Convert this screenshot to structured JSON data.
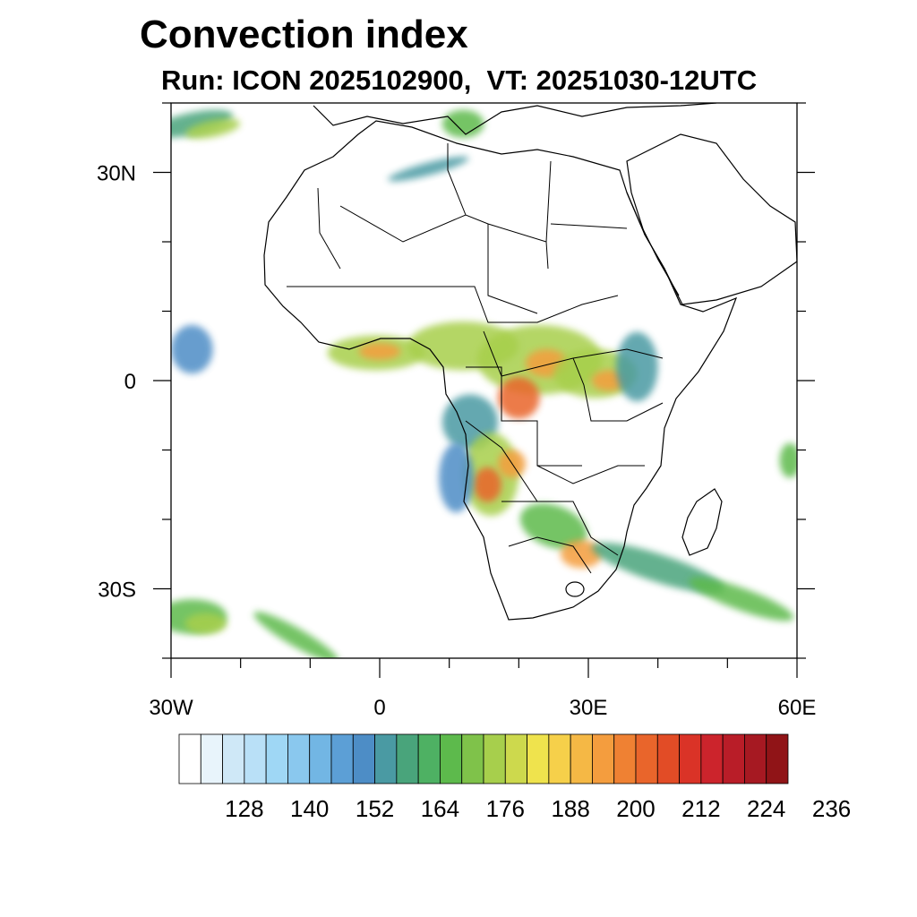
{
  "header": {
    "title": "Convection index",
    "subtitle": "Run: ICON 2025102900,  VT: 20251030-12UTC"
  },
  "map": {
    "projection": "cylindrical-equidistant",
    "lon_range": [
      -30,
      60
    ],
    "lat_range": [
      -40,
      40
    ],
    "x_ticks": [
      {
        "lon": -30,
        "label": "30W"
      },
      {
        "lon": 0,
        "label": "0"
      },
      {
        "lon": 30,
        "label": "30E"
      },
      {
        "lon": 60,
        "label": "60E"
      }
    ],
    "y_ticks": [
      {
        "lat": 30,
        "label": "30N"
      },
      {
        "lat": 0,
        "label": "0"
      },
      {
        "lat": -30,
        "label": "30S"
      }
    ],
    "minor_lon_step": 10,
    "minor_lat_step": 10,
    "convection_cells": [
      {
        "lon": -27,
        "lat": 37,
        "rlon": 6,
        "rlat": 1.6,
        "rot": -12,
        "level": 10
      },
      {
        "lon": -24,
        "lat": 36.3,
        "rlon": 4,
        "rlat": 1.2,
        "rot": -12,
        "level": 14
      },
      {
        "lon": 7,
        "lat": 30.5,
        "rlon": 6,
        "rlat": 0.9,
        "rot": -15,
        "level": 9
      },
      {
        "lon": 12,
        "lat": 37,
        "rlon": 3,
        "rlat": 2,
        "rot": 0,
        "level": 12
      },
      {
        "lon": -27,
        "lat": 4.5,
        "rlon": 3,
        "rlat": 3.5,
        "rot": 0,
        "level": 8
      },
      {
        "lon": -0.5,
        "lat": 4,
        "rlon": 7,
        "rlat": 2.5,
        "rot": 0,
        "level": 14
      },
      {
        "lon": 0,
        "lat": 4.2,
        "rlon": 3,
        "rlat": 1.2,
        "rot": 0,
        "level": 19
      },
      {
        "lon": 12,
        "lat": 5,
        "rlon": 8,
        "rlat": 3.5,
        "rot": 0,
        "level": 14
      },
      {
        "lon": 23,
        "lat": 3,
        "rlon": 9,
        "rlat": 5,
        "rot": 0,
        "level": 14
      },
      {
        "lon": 20,
        "lat": -2.5,
        "rlon": 3,
        "rlat": 3,
        "rot": 0,
        "level": 21
      },
      {
        "lon": 24,
        "lat": 2.5,
        "rlon": 3,
        "rlat": 2,
        "rot": 0,
        "level": 19
      },
      {
        "lon": 31,
        "lat": 1,
        "rlon": 6,
        "rlat": 3.5,
        "rot": 0,
        "level": 14
      },
      {
        "lon": 33,
        "lat": 0,
        "rlon": 2.5,
        "rlat": 1.5,
        "rot": 0,
        "level": 19
      },
      {
        "lon": 37,
        "lat": 2,
        "rlon": 3,
        "rlat": 5,
        "rot": 0,
        "level": 9
      },
      {
        "lon": 13,
        "lat": -6,
        "rlon": 4,
        "rlat": 4,
        "rot": 0,
        "level": 9
      },
      {
        "lon": 16,
        "lat": -13.5,
        "rlon": 4,
        "rlat": 6,
        "rot": 0,
        "level": 14
      },
      {
        "lon": 15.5,
        "lat": -15,
        "rlon": 2,
        "rlat": 2.5,
        "rot": 0,
        "level": 21
      },
      {
        "lon": 19,
        "lat": -12,
        "rlon": 2,
        "rlat": 2,
        "rot": 0,
        "level": 19
      },
      {
        "lon": 11,
        "lat": -14,
        "rlon": 2.5,
        "rlat": 5,
        "rot": 0,
        "level": 8
      },
      {
        "lon": 25,
        "lat": -21,
        "rlon": 5,
        "rlat": 3,
        "rot": 20,
        "level": 12
      },
      {
        "lon": 29,
        "lat": -25,
        "rlon": 3,
        "rlat": 2,
        "rot": 0,
        "level": 19
      },
      {
        "lon": 40,
        "lat": -27,
        "rlon": 10,
        "rlat": 2,
        "rot": 18,
        "level": 10
      },
      {
        "lon": 52,
        "lat": -31.5,
        "rlon": 8,
        "rlat": 1.6,
        "rot": 20,
        "level": 12
      },
      {
        "lon": 59,
        "lat": -11.5,
        "rlon": 1.5,
        "rlat": 2.5,
        "rot": 0,
        "level": 12
      },
      {
        "lon": -27,
        "lat": -34,
        "rlon": 5,
        "rlat": 2.5,
        "rot": 0,
        "level": 12
      },
      {
        "lon": -25,
        "lat": -35,
        "rlon": 3,
        "rlat": 1.5,
        "rot": 0,
        "level": 14
      },
      {
        "lon": -12,
        "lat": -37,
        "rlon": 7,
        "rlat": 1.3,
        "rot": 30,
        "level": 12
      }
    ]
  },
  "colorbar": {
    "colors": [
      "#ffffff",
      "#e8f4fb",
      "#cfe8f7",
      "#b9e0f7",
      "#9fd7f5",
      "#8ac8ee",
      "#72b6e4",
      "#5c9fd6",
      "#4d8dc6",
      "#4a9aa3",
      "#49a47b",
      "#4eb163",
      "#5dba4c",
      "#7fc24a",
      "#a7cf4c",
      "#cdd94d",
      "#efe34d",
      "#f6d04a",
      "#f5b845",
      "#f49d3e",
      "#ef8133",
      "#e9652b",
      "#e24c26",
      "#da3327",
      "#cc242c",
      "#b91d28",
      "#a61922",
      "#901417"
    ],
    "labels": [
      {
        "value": 128,
        "label": "128"
      },
      {
        "value": 140,
        "label": "140"
      },
      {
        "value": 152,
        "label": "152"
      },
      {
        "value": 164,
        "label": "164"
      },
      {
        "value": 176,
        "label": "176"
      },
      {
        "value": 188,
        "label": "188"
      },
      {
        "value": 200,
        "label": "200"
      },
      {
        "value": 212,
        "label": "212"
      },
      {
        "value": 224,
        "label": "224"
      },
      {
        "value": 236,
        "label": "236"
      }
    ],
    "min": 116,
    "step": 4
  }
}
